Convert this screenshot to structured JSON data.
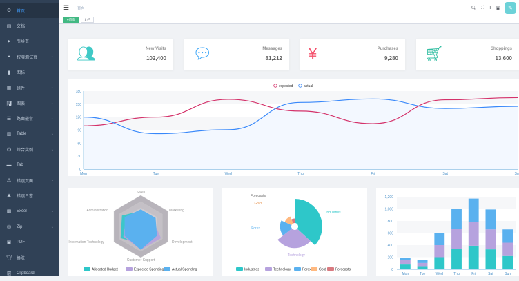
{
  "sidebar": {
    "items": [
      {
        "label": "首页",
        "icon": "dashboard-icon",
        "active": true
      },
      {
        "label": "文档",
        "icon": "documentation-icon"
      },
      {
        "label": "引导页",
        "icon": "guide-icon"
      },
      {
        "label": "权限测试页",
        "icon": "lock-icon",
        "sub": true
      },
      {
        "label": "图标",
        "icon": "icon-icon"
      },
      {
        "label": "组件",
        "icon": "component-icon",
        "sub": true
      },
      {
        "label": "图表",
        "icon": "chart-icon",
        "sub": true
      },
      {
        "label": "路由嵌套",
        "icon": "nested-icon",
        "sub": true
      },
      {
        "label": "Table",
        "icon": "table-icon",
        "sub": true
      },
      {
        "label": "综合实例",
        "icon": "example-icon",
        "sub": true
      },
      {
        "label": "Tab",
        "icon": "tab-icon"
      },
      {
        "label": "错误页面",
        "icon": "404-icon",
        "sub": true
      },
      {
        "label": "错误日志",
        "icon": "bug-icon"
      },
      {
        "label": "Excel",
        "icon": "excel-icon",
        "sub": true
      },
      {
        "label": "Zip",
        "icon": "zip-icon",
        "sub": true
      },
      {
        "label": "PDF",
        "icon": "pdf-icon"
      },
      {
        "label": "换肤",
        "icon": "theme-icon"
      },
      {
        "label": "Clipboard",
        "icon": "clipboard-icon"
      }
    ]
  },
  "header": {
    "breadcrumb": "首页"
  },
  "tags": [
    {
      "label": "首页",
      "active": true
    },
    {
      "label": "文档"
    }
  ],
  "cards": [
    {
      "label": "New Visits",
      "value": "102,400",
      "icon": "peoples-icon",
      "color": "#40c9c6"
    },
    {
      "label": "Messages",
      "value": "81,212",
      "icon": "message-icon",
      "color": "#36a3f7"
    },
    {
      "label": "Purchases",
      "value": "9,280",
      "icon": "money-icon",
      "color": "#f4516c"
    },
    {
      "label": "Shoppings",
      "value": "13,600",
      "icon": "shopping-icon",
      "color": "#34bfa3"
    }
  ],
  "chart_data": [
    {
      "type": "line",
      "categories": [
        "Mon",
        "Tue",
        "Wed",
        "Thu",
        "Fri",
        "Sat",
        "Sun"
      ],
      "ylim": [
        0,
        180
      ],
      "yticks": [
        0,
        30,
        60,
        90,
        120,
        150,
        180
      ],
      "legend": "top",
      "series": [
        {
          "name": "expected",
          "color": "#d4326a",
          "values": [
            100,
            120,
            161,
            134,
            105,
            160,
            165
          ]
        },
        {
          "name": "actual",
          "color": "#3888fa",
          "values": [
            120,
            82,
            91,
            154,
            162,
            140,
            145
          ]
        }
      ]
    },
    {
      "type": "radar",
      "indicators": [
        {
          "name": "Sales",
          "max": 10000
        },
        {
          "name": "Administration",
          "max": 20000
        },
        {
          "name": "Information Technology",
          "max": 20000
        },
        {
          "name": "Customer Support",
          "max": 20000
        },
        {
          "name": "Development",
          "max": 20000
        },
        {
          "name": "Marketing",
          "max": 20000
        }
      ],
      "series": [
        {
          "name": "Allocated Budget",
          "color": "#2ec7c9",
          "values": [
            5000,
            7000,
            12000,
            11000,
            15000,
            14000
          ]
        },
        {
          "name": "Expected Spending",
          "color": "#b6a2de",
          "values": [
            4000,
            9000,
            15000,
            15000,
            13000,
            11000
          ]
        },
        {
          "name": "Actual Spending",
          "color": "#5ab1ef",
          "values": [
            5500,
            11000,
            12000,
            15000,
            12000,
            12000
          ]
        }
      ],
      "legend": "bottom"
    },
    {
      "type": "pie",
      "rose": true,
      "slices": [
        {
          "name": "Industries",
          "value": 320,
          "color": "#2ec7c9"
        },
        {
          "name": "Technology",
          "value": 240,
          "color": "#b6a2de"
        },
        {
          "name": "Forex",
          "value": 149,
          "color": "#5ab1ef"
        },
        {
          "name": "Gold",
          "value": 100,
          "color": "#ffb980"
        },
        {
          "name": "Forecasts",
          "value": 59,
          "color": "#d87a80"
        }
      ],
      "legend": "bottom"
    },
    {
      "type": "bar",
      "stacked": true,
      "categories": [
        "Mon",
        "Tue",
        "Wed",
        "Thu",
        "Fri",
        "Sat",
        "Sun"
      ],
      "ylim": [
        0,
        1200
      ],
      "yticks": [
        "0",
        "200",
        "400",
        "600",
        "800",
        "1,000",
        "1,200"
      ],
      "series": [
        {
          "color": "#2ec7c9",
          "values": [
            79,
            52,
            200,
            334,
            390,
            330,
            220
          ]
        },
        {
          "color": "#b6a2de",
          "values": [
            80,
            52,
            200,
            334,
            390,
            330,
            220
          ]
        },
        {
          "color": "#5ab1ef",
          "values": [
            30,
            52,
            200,
            334,
            390,
            330,
            220
          ]
        }
      ]
    }
  ]
}
